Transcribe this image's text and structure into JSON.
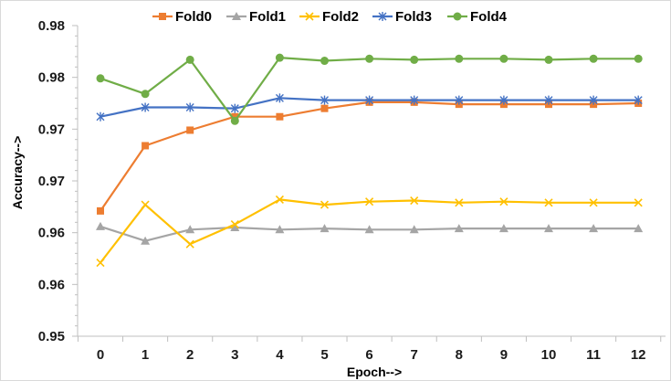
{
  "chart_data": {
    "type": "line",
    "title": "",
    "xlabel": "Epoch-->",
    "ylabel": "Accuracy-->",
    "categories": [
      "0",
      "1",
      "2",
      "3",
      "4",
      "5",
      "6",
      "7",
      "8",
      "9",
      "10",
      "11",
      "12"
    ],
    "x": [
      0,
      1,
      2,
      3,
      4,
      5,
      6,
      7,
      8,
      9,
      10,
      11,
      12
    ],
    "ylim": [
      0.95,
      0.98
    ],
    "y_ticks": [
      0.95,
      0.955,
      0.96,
      0.965,
      0.97,
      0.975,
      0.98
    ],
    "y_tick_labels": [
      "0.95",
      "0.96",
      "0.96",
      "0.97",
      "0.97",
      "0.98",
      "0.98"
    ],
    "grid": false,
    "legend_position": "top",
    "series": [
      {
        "name": "Fold0",
        "color": "#ed7d31",
        "marker": "square",
        "values": [
          0.9621,
          0.9684,
          0.9699,
          0.9712,
          0.9712,
          0.972,
          0.9726,
          0.9726,
          0.9724,
          0.9724,
          0.9724,
          0.9724,
          0.9725
        ]
      },
      {
        "name": "Fold1",
        "color": "#a5a5a5",
        "marker": "triangle",
        "values": [
          0.9606,
          0.9592,
          0.9603,
          0.9605,
          0.9603,
          0.9604,
          0.9603,
          0.9603,
          0.9604,
          0.9604,
          0.9604,
          0.9604,
          0.9604
        ]
      },
      {
        "name": "Fold2",
        "color": "#ffc000",
        "marker": "x",
        "values": [
          0.9571,
          0.9627,
          0.9589,
          0.9608,
          0.9632,
          0.9627,
          0.963,
          0.9631,
          0.9629,
          0.963,
          0.9629,
          0.9629,
          0.9629
        ]
      },
      {
        "name": "Fold3",
        "color": "#4472c4",
        "marker": "star",
        "values": [
          0.9712,
          0.9721,
          0.9721,
          0.972,
          0.973,
          0.9728,
          0.9728,
          0.9728,
          0.9728,
          0.9728,
          0.9728,
          0.9728,
          0.9728
        ]
      },
      {
        "name": "Fold4",
        "color": "#70ad47",
        "marker": "circle",
        "values": [
          0.9749,
          0.9734,
          0.9767,
          0.9708,
          0.9769,
          0.9766,
          0.9768,
          0.9767,
          0.9768,
          0.9768,
          0.9767,
          0.9768,
          0.9768
        ]
      }
    ]
  }
}
